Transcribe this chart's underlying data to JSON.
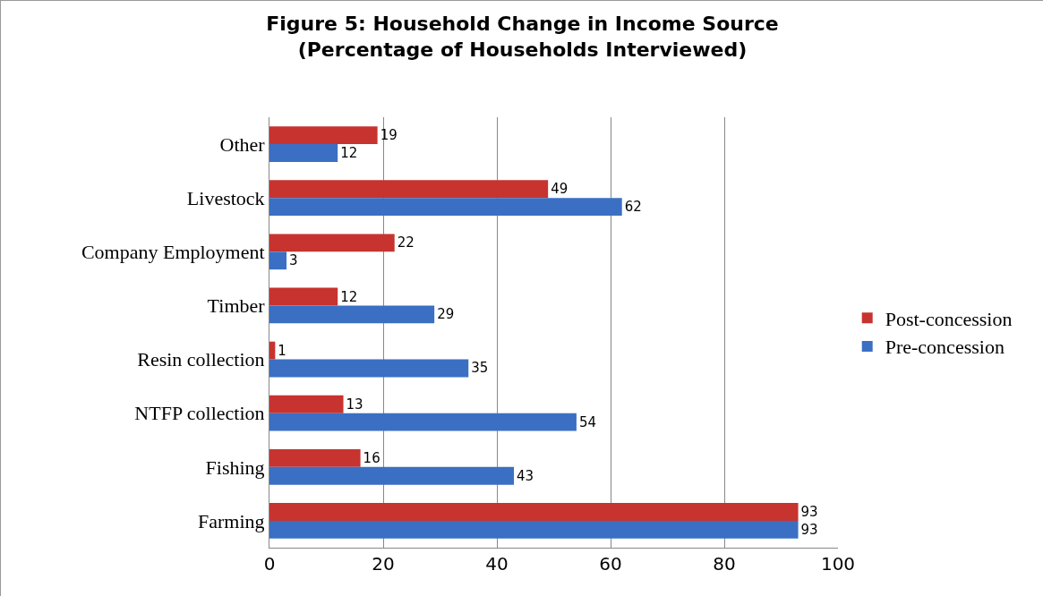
{
  "chart_data": {
    "type": "bar",
    "orientation": "horizontal",
    "title": "Figure 5: Household Change in Income Source\n(Percentage of Households Interviewed)",
    "categories": [
      "Other",
      "Livestock",
      "Company Employment",
      "Timber",
      "Resin collection",
      "NTFP collection",
      "Fishing",
      "Farming"
    ],
    "series": [
      {
        "name": "Post-concession",
        "color": "#c7332f",
        "values": [
          19,
          49,
          22,
          12,
          1,
          13,
          16,
          93
        ]
      },
      {
        "name": "Pre-concession",
        "color": "#3b6fc3",
        "values": [
          12,
          62,
          3,
          29,
          35,
          54,
          43,
          93
        ]
      }
    ],
    "xlim": [
      0,
      100
    ],
    "xticks": [
      0,
      20,
      40,
      60,
      80,
      100
    ],
    "grid": "x",
    "legend": "right",
    "data_labels": true
  }
}
